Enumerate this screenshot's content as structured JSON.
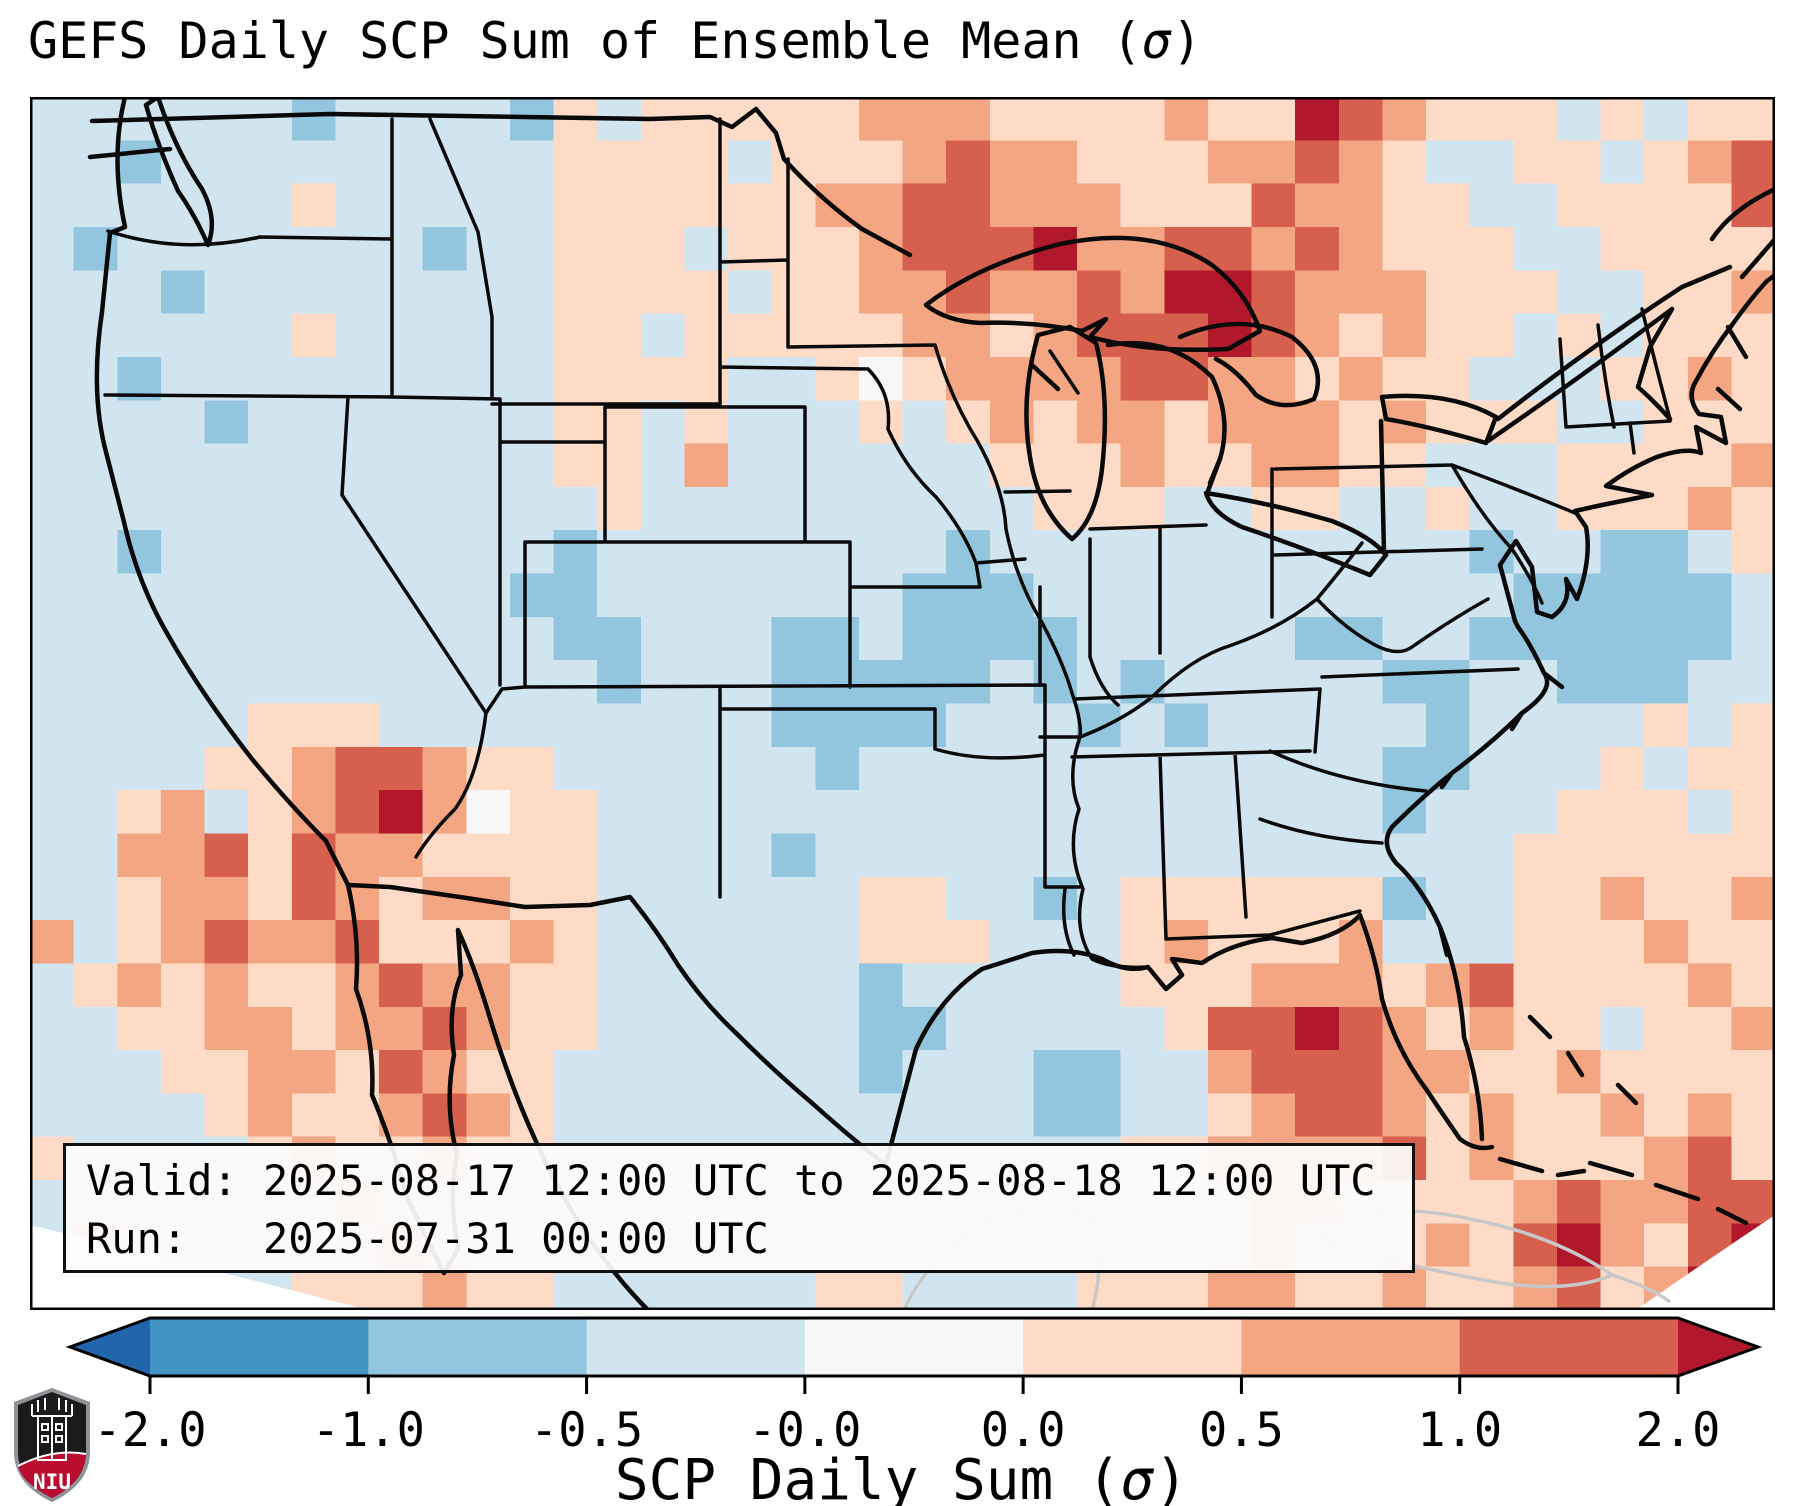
{
  "title": {
    "prefix": "GEFS Daily SCP Sum of Ensemble Mean (",
    "sigma": "σ",
    "suffix": ")"
  },
  "info_box": {
    "line1": "Valid: 2025-08-17 12:00 UTC to 2025-08-18 12:00 UTC",
    "line2": "Run:   2025-07-31 00:00 UTC"
  },
  "colorbar": {
    "label_prefix": "SCP Daily Sum (",
    "sigma": "σ",
    "label_suffix": ")",
    "ticks": [
      "-2.0",
      "-1.0",
      "-0.5",
      "-0.0",
      "0.0",
      "0.5",
      "1.0",
      "2.0"
    ],
    "segment_colors": [
      "#4393c3",
      "#92c5de",
      "#d1e5f0",
      "#f7f7f7",
      "#fddbc7",
      "#f4a582",
      "#d6604d"
    ],
    "under_color": "#2166ac",
    "over_color": "#b2182b"
  },
  "logo": {
    "text": "NIU",
    "red": "#ba0c2f",
    "dark": "#1b1b1b",
    "gray": "#8f9397"
  },
  "chart_data": {
    "type": "heatmap",
    "title": "GEFS Daily SCP Sum of Ensemble Mean (σ)",
    "colorbar_label": "SCP Daily Sum (σ)",
    "valid": "2025-08-17 12:00 UTC to 2025-08-18 12:00 UTC",
    "run": "2025-07-31 00:00 UTC",
    "colorbar_boundaries": [
      -2.0,
      -1.0,
      -0.5,
      -0.0,
      0.0,
      0.5,
      1.0,
      2.0
    ],
    "palette": {
      "0": "#2166ac",
      "1": "#4393c3",
      "2": "#92c5de",
      "3": "#d1e5f0",
      "4": "#f7f7f7",
      "5": "#fddbc7",
      "6": "#f4a582",
      "7": "#d6604d",
      "8": "#b2182b"
    },
    "palette_value_ranges": {
      "0": "< -2.0 σ",
      "1": "-2.0 to -1.0 σ",
      "2": "-1.0 to -0.5 σ",
      "3": "-0.5 to -0.0 σ",
      "4": "-0.0 to 0.0 σ",
      "5": "0.0 to 0.5 σ",
      "6": "0.5 to 1.0 σ",
      "7": "1.0 to 2.0 σ",
      "8": "> 2.0 σ"
    },
    "grid_cols": 40,
    "grid_rows_count": 28,
    "grid_rows": [
      "3333332333325355555666555565587655535355",
      "3323333333335555355567665556676533553567",
      "3333335333335555556677666555766553355557",
      "3233333332335553555677786677676555335555",
      "3332333333335555355667667688766655533556",
      "3333335333335535555566567778765655353555",
      "3323333333335555335456666776656553335565",
      "3333233333335535333535656656665655533555",
      "3333333333335536333333555655665533355556",
      "3333333333333533333333355533553353355565",
      "3323333333332333333332333333333332332235",
      "3333333333322333333322233333333333222223",
      "3333333333332233322322223333322332222223",
      "3333333333333233322222323233333223322233",
      "3333355533333333322223332323333323333535",
      "3333556776553333332333333333333223335355",
      "3356356786455333333333333333333233355535",
      "3366757665555333323333333333333333555555",
      "3356657656655333333553323555555233556556",
      "6356766755565333333555333565556333555655",
      "3565655676655333333233333555666567555565",
      "3355665667655333333223333357787656553556",
      "3335566576553333333233322336777665565555",
      "3333565567653333333333322335677656556565",
      "5333356556553333333333333556666756555675",
      "3533335655533333333333335555665555676677",
      "3653333565553333333333333555655565786578",
      "3355335556553333335533335556655655675687"
    ]
  }
}
